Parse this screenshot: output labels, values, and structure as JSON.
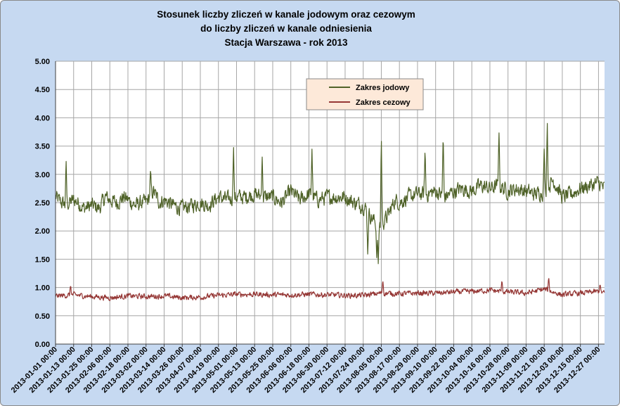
{
  "chart_data": {
    "type": "line",
    "title_lines": [
      "Stosunek liczby zliczeń w kanale jodowym oraz cezowym",
      "do liczby zliczeń w kanale odniesienia",
      "Stacja Warszawa - rok 2013"
    ],
    "ylim": [
      0,
      5
    ],
    "y_ticks": [
      "0.00",
      "0.50",
      "1.00",
      "1.50",
      "2.00",
      "2.50",
      "3.00",
      "3.50",
      "4.00",
      "4.50",
      "5.00"
    ],
    "x_range": [
      "2013-01-01 00:00",
      "2013-12-31 00:00"
    ],
    "x_tick_labels": [
      "2013-01-01 00:00",
      "2013-01-13 00:00",
      "2013-01-25 00:00",
      "2013-02-06 00:00",
      "2013-02-18 00:00",
      "2013-03-02 00:00",
      "2013-03-14 00:00",
      "2013-03-26 00:00",
      "2013-04-07 00:00",
      "2013-04-19 00:00",
      "2013-05-01 00:00",
      "2013-05-13 00:00",
      "2013-05-25 00:00",
      "2013-06-06 00:00",
      "2013-06-18 00:00",
      "2013-06-30 00:00",
      "2013-07-12 00:00",
      "2013-07-24 00:00",
      "2013-08-05 00:00",
      "2013-08-17 00:00",
      "2013-08-29 00:00",
      "2013-09-10 00:00",
      "2013-09-22 00:00",
      "2013-10-04 00:00",
      "2013-10-16 00:00",
      "2013-10-28 00:00",
      "2013-11-09 00:00",
      "2013-11-21 00:00",
      "2013-12-03 00:00",
      "2013-12-15 00:00",
      "2013-12-27 00:00"
    ],
    "grid": true,
    "legend_position": "top-center",
    "series": [
      {
        "name": "Zakres jodowy",
        "color": "#4f6228",
        "x": [
          "2013-01-01",
          "2013-01-05",
          "2013-01-08",
          "2013-01-13",
          "2013-01-16",
          "2013-01-20",
          "2013-01-25",
          "2013-01-30",
          "2013-02-03",
          "2013-02-06",
          "2013-02-11",
          "2013-02-15",
          "2013-02-18",
          "2013-02-23",
          "2013-02-27",
          "2013-03-02",
          "2013-03-07",
          "2013-03-11",
          "2013-03-14",
          "2013-03-20",
          "2013-03-26",
          "2013-04-01",
          "2013-04-07",
          "2013-04-12",
          "2013-04-19",
          "2013-04-25",
          "2013-05-01",
          "2013-05-06",
          "2013-05-13",
          "2013-05-19",
          "2013-05-25",
          "2013-05-31",
          "2013-06-06",
          "2013-06-12",
          "2013-06-18",
          "2013-06-24",
          "2013-06-30",
          "2013-07-06",
          "2013-07-12",
          "2013-07-18",
          "2013-07-24",
          "2013-07-28",
          "2013-08-01",
          "2013-08-05",
          "2013-08-10",
          "2013-08-14",
          "2013-08-17",
          "2013-08-23",
          "2013-08-29",
          "2013-09-04",
          "2013-09-10",
          "2013-09-16",
          "2013-09-22",
          "2013-09-28",
          "2013-10-04",
          "2013-10-10",
          "2013-10-16",
          "2013-10-22",
          "2013-10-28",
          "2013-11-03",
          "2013-11-09",
          "2013-11-15",
          "2013-11-21",
          "2013-11-27",
          "2013-12-03",
          "2013-12-09",
          "2013-12-15",
          "2013-12-21",
          "2013-12-27",
          "2013-12-31"
        ],
        "y": [
          2.6,
          2.5,
          2.45,
          2.55,
          2.5,
          2.4,
          2.45,
          2.4,
          2.6,
          2.55,
          2.5,
          2.6,
          2.55,
          2.45,
          2.5,
          2.5,
          2.7,
          2.5,
          2.55,
          2.45,
          2.4,
          2.45,
          2.5,
          2.45,
          2.6,
          2.55,
          2.6,
          2.6,
          2.65,
          2.6,
          2.6,
          2.5,
          2.7,
          2.55,
          2.65,
          2.55,
          2.6,
          2.6,
          2.6,
          2.5,
          2.45,
          2.3,
          2.15,
          2.1,
          2.3,
          2.55,
          2.5,
          2.6,
          2.65,
          2.65,
          2.7,
          2.6,
          2.7,
          2.75,
          2.7,
          2.8,
          2.75,
          2.8,
          2.7,
          2.75,
          2.7,
          2.65,
          2.7,
          2.9,
          2.6,
          2.65,
          2.75,
          2.8,
          2.85,
          2.75
        ],
        "peaks": [
          {
            "x": "2013-01-08",
            "y": 3.25
          },
          {
            "x": "2013-03-05",
            "y": 3.1
          },
          {
            "x": "2013-04-29",
            "y": 3.53
          },
          {
            "x": "2013-05-18",
            "y": 3.33
          },
          {
            "x": "2013-06-20",
            "y": 3.5
          },
          {
            "x": "2013-07-27",
            "y": 1.55
          },
          {
            "x": "2013-08-02",
            "y": 1.48
          },
          {
            "x": "2013-08-03",
            "y": 1.4
          },
          {
            "x": "2013-08-05",
            "y": 3.72
          },
          {
            "x": "2013-09-03",
            "y": 3.47
          },
          {
            "x": "2013-09-15",
            "y": 3.75
          },
          {
            "x": "2013-10-22",
            "y": 3.83
          },
          {
            "x": "2013-11-21",
            "y": 3.49
          },
          {
            "x": "2013-11-23",
            "y": 3.97
          }
        ]
      },
      {
        "name": "Zakres cezowy",
        "color": "#953735",
        "x": [
          "2013-01-01",
          "2013-01-13",
          "2013-01-25",
          "2013-02-06",
          "2013-02-18",
          "2013-03-02",
          "2013-03-14",
          "2013-03-26",
          "2013-04-07",
          "2013-04-19",
          "2013-05-01",
          "2013-05-13",
          "2013-05-25",
          "2013-06-06",
          "2013-06-18",
          "2013-06-30",
          "2013-07-12",
          "2013-07-24",
          "2013-08-05",
          "2013-08-17",
          "2013-08-29",
          "2013-09-10",
          "2013-09-22",
          "2013-10-04",
          "2013-10-16",
          "2013-10-28",
          "2013-11-09",
          "2013-11-21",
          "2013-12-03",
          "2013-12-15",
          "2013-12-27",
          "2013-12-31"
        ],
        "y": [
          0.85,
          0.87,
          0.84,
          0.82,
          0.85,
          0.84,
          0.85,
          0.82,
          0.83,
          0.86,
          0.88,
          0.88,
          0.87,
          0.87,
          0.88,
          0.87,
          0.86,
          0.86,
          0.9,
          0.89,
          0.9,
          0.9,
          0.92,
          0.93,
          0.95,
          0.92,
          0.9,
          0.97,
          0.87,
          0.9,
          0.93,
          0.9
        ],
        "peaks": [
          {
            "x": "2013-01-11",
            "y": 1.05
          },
          {
            "x": "2013-08-06",
            "y": 1.14
          },
          {
            "x": "2013-10-24",
            "y": 1.13
          },
          {
            "x": "2013-11-24",
            "y": 1.19
          },
          {
            "x": "2013-12-28",
            "y": 1.07
          }
        ]
      }
    ]
  }
}
